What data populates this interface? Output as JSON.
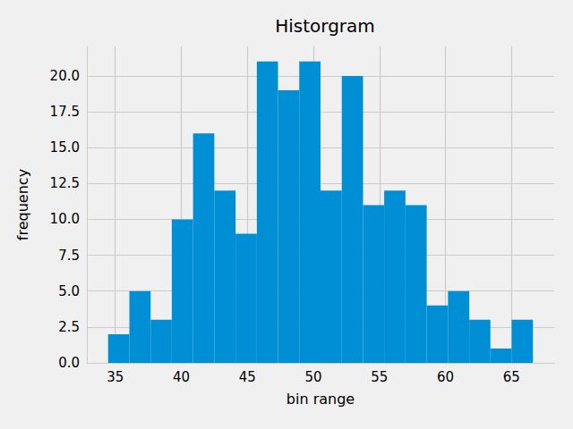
{
  "chart_data": {
    "type": "histogram",
    "title": "Historgram",
    "x_label": "bin range",
    "y_label": "frequency",
    "bins": [
      34.46,
      36.07,
      37.68,
      39.28,
      40.89,
      42.5,
      44.11,
      45.72,
      47.32,
      48.93,
      50.54,
      52.15,
      53.76,
      55.36,
      56.97,
      58.58,
      60.19,
      61.8,
      63.4,
      65.01,
      66.62
    ],
    "values": [
      2,
      5,
      3,
      10,
      16,
      12,
      9,
      21,
      19,
      21,
      12,
      20,
      11,
      12,
      11,
      4,
      5,
      3,
      1,
      3
    ],
    "color": "#008fd5",
    "xlim": [
      32.85,
      68.23
    ],
    "xticks": [
      35,
      40,
      45,
      50,
      55,
      60,
      65
    ],
    "ylim": [
      0,
      22.05
    ],
    "yticks": [
      {
        "value": 0,
        "label": "0.0"
      },
      {
        "value": 2.5,
        "label": "2.5"
      },
      {
        "value": 5,
        "label": "5.0"
      },
      {
        "value": 7.5,
        "label": "7.5"
      },
      {
        "value": 10,
        "label": "10.0"
      },
      {
        "value": 12.5,
        "label": "12.5"
      },
      {
        "value": 15,
        "label": "15.0"
      },
      {
        "value": 17.5,
        "label": "17.5"
      },
      {
        "value": 20,
        "label": "20.0"
      }
    ],
    "grid": true
  }
}
